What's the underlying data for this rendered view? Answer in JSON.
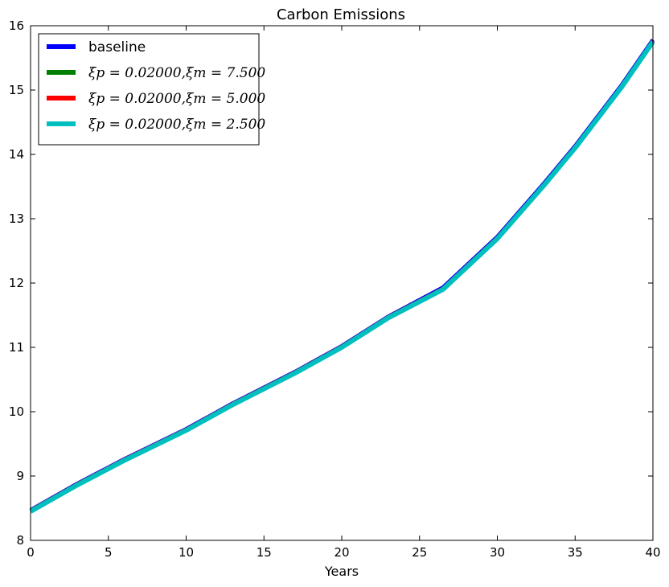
{
  "chart_data": {
    "type": "line",
    "title": "Carbon Emissions",
    "xlabel": "Years",
    "ylabel": "",
    "xlim": [
      0,
      40
    ],
    "ylim": [
      8,
      16
    ],
    "xticks": [
      "0",
      "5",
      "10",
      "15",
      "20",
      "25",
      "30",
      "35",
      "40"
    ],
    "yticks": [
      "8",
      "9",
      "10",
      "11",
      "12",
      "13",
      "14",
      "15",
      "16"
    ],
    "grid": false,
    "legend_position": "top-left",
    "x": [
      0,
      3,
      6,
      10,
      13,
      17,
      20,
      23,
      26.5,
      30,
      33,
      35,
      38,
      40
    ],
    "series": [
      {
        "name": "baseline",
        "color": "#0000ff",
        "values": [
          8.47,
          8.88,
          9.26,
          9.73,
          10.13,
          10.62,
          11.02,
          11.48,
          11.93,
          12.72,
          13.55,
          14.13,
          15.08,
          15.78
        ]
      },
      {
        "name": "ξp = 0.02000,ξm = 7.500",
        "color": "#008000",
        "values": [
          8.46,
          8.87,
          9.25,
          9.72,
          10.12,
          10.61,
          11.01,
          11.47,
          11.91,
          12.7,
          13.53,
          14.11,
          15.06,
          15.76
        ]
      },
      {
        "name": "ξp = 0.02000,ξm = 5.000",
        "color": "#ff0000",
        "values": [
          8.46,
          8.87,
          9.25,
          9.72,
          10.12,
          10.61,
          11.01,
          11.47,
          11.91,
          12.7,
          13.53,
          14.11,
          15.06,
          15.76
        ]
      },
      {
        "name": "ξp = 0.02000,ξm = 2.500",
        "color": "#00bfbf",
        "values": [
          8.45,
          8.86,
          9.24,
          9.71,
          10.11,
          10.6,
          11.0,
          11.46,
          11.9,
          12.69,
          13.52,
          14.1,
          15.05,
          15.75
        ]
      }
    ]
  }
}
